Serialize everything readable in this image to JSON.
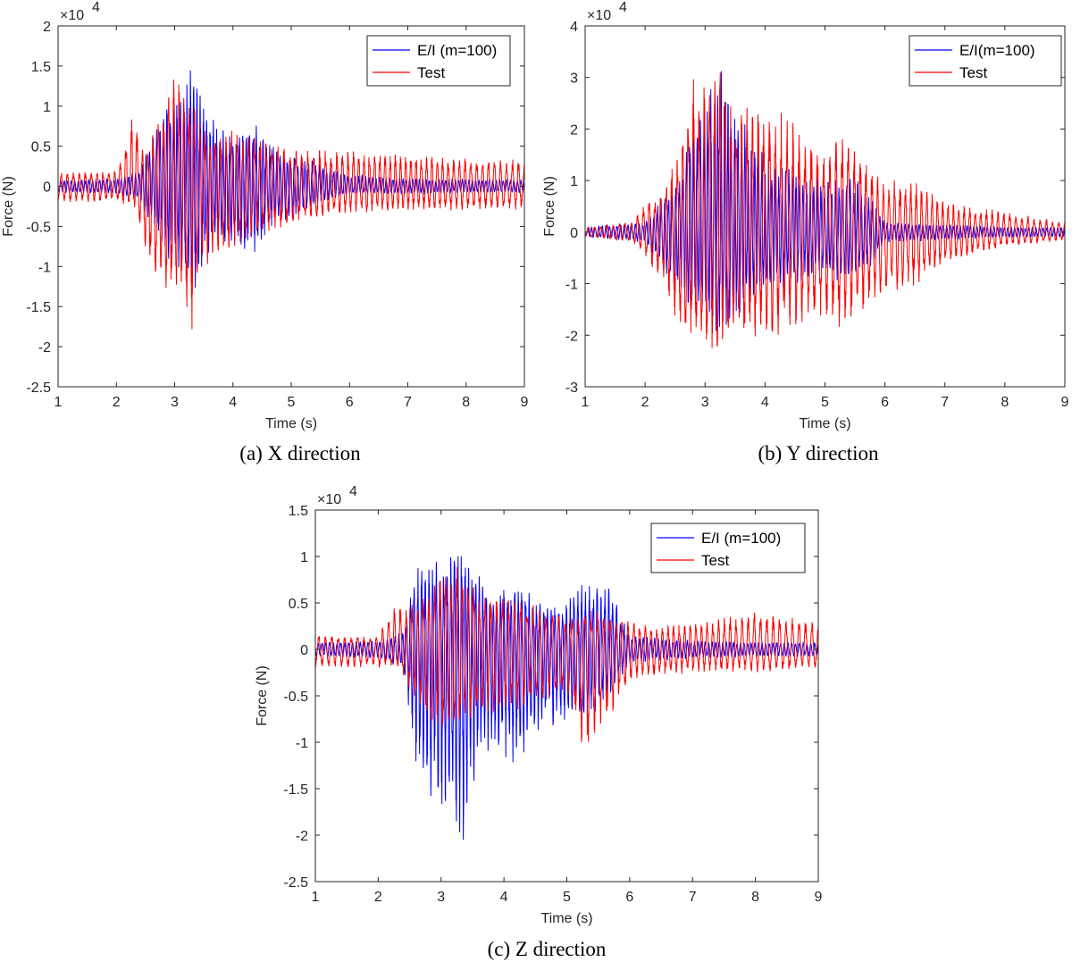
{
  "chart_data": [
    {
      "type": "line",
      "caption": "(a) X direction",
      "xlabel": "Time (s)",
      "ylabel": "Force (N)",
      "y_exponent_label": "×10",
      "y_exponent_power": "4",
      "xlim": [
        1,
        9
      ],
      "ylim": [
        -2.5,
        2
      ],
      "xticks": [
        "1",
        "2",
        "3",
        "4",
        "5",
        "6",
        "7",
        "8",
        "9"
      ],
      "yticks": [
        "2",
        "1.5",
        "1",
        "0.5",
        "0",
        "-0.5",
        "-1",
        "-1.5",
        "-2",
        "-2.5"
      ],
      "legend_position": "top-right",
      "series": [
        {
          "name": "E/I (m=100)",
          "color": "#0000ff",
          "envelope": [
            [
              1,
              0.08
            ],
            [
              2,
              0.1
            ],
            [
              2.4,
              0.2
            ],
            [
              2.6,
              0.6
            ],
            [
              2.8,
              0.9
            ],
            [
              3,
              1.2
            ],
            [
              3.2,
              1.4
            ],
            [
              3.3,
              1.6
            ],
            [
              3.5,
              1.1
            ],
            [
              3.7,
              0.8
            ],
            [
              4,
              0.6
            ],
            [
              4.4,
              0.8
            ],
            [
              4.6,
              0.6
            ],
            [
              5,
              0.4
            ],
            [
              5.5,
              0.3
            ],
            [
              6,
              0.15
            ],
            [
              7,
              0.1
            ],
            [
              8,
              0.1
            ],
            [
              9,
              0.08
            ]
          ],
          "min_envelope": [
            [
              1,
              -0.08
            ],
            [
              2,
              -0.1
            ],
            [
              2.4,
              -0.2
            ],
            [
              2.6,
              -0.5
            ],
            [
              2.8,
              -0.8
            ],
            [
              3,
              -1.0
            ],
            [
              3.2,
              -1.3
            ],
            [
              3.3,
              -1.35
            ],
            [
              3.5,
              -1.0
            ],
            [
              3.7,
              -0.7
            ],
            [
              4,
              -0.8
            ],
            [
              4.4,
              -0.9
            ],
            [
              4.6,
              -0.5
            ],
            [
              5,
              -0.4
            ],
            [
              5.5,
              -0.2
            ],
            [
              6,
              -0.1
            ],
            [
              7,
              -0.1
            ],
            [
              8,
              -0.08
            ],
            [
              9,
              -0.08
            ]
          ]
        },
        {
          "name": "Test",
          "color": "#ff0000",
          "envelope": [
            [
              1,
              0.18
            ],
            [
              2,
              0.2
            ],
            [
              2.3,
              0.95
            ],
            [
              2.5,
              0.4
            ],
            [
              2.7,
              0.9
            ],
            [
              3,
              1.4
            ],
            [
              3.2,
              1.2
            ],
            [
              3.4,
              1.0
            ],
            [
              3.6,
              0.6
            ],
            [
              4,
              0.7
            ],
            [
              4.5,
              0.6
            ],
            [
              5,
              0.5
            ],
            [
              5.5,
              0.45
            ],
            [
              6,
              0.45
            ],
            [
              7,
              0.4
            ],
            [
              8,
              0.35
            ],
            [
              9,
              0.35
            ]
          ],
          "min_envelope": [
            [
              1,
              -0.2
            ],
            [
              2,
              -0.2
            ],
            [
              2.3,
              -0.25
            ],
            [
              2.6,
              -1.2
            ],
            [
              2.9,
              -1.4
            ],
            [
              3.15,
              -1.3
            ],
            [
              3.25,
              -2.05
            ],
            [
              3.4,
              -1.2
            ],
            [
              3.6,
              -0.9
            ],
            [
              4,
              -0.8
            ],
            [
              4.5,
              -0.6
            ],
            [
              5,
              -0.5
            ],
            [
              5.5,
              -0.4
            ],
            [
              6,
              -0.35
            ],
            [
              7,
              -0.3
            ],
            [
              8,
              -0.3
            ],
            [
              9,
              -0.3
            ]
          ]
        }
      ]
    },
    {
      "type": "line",
      "caption": "(b) Y direction",
      "xlabel": "Time (s)",
      "ylabel": "Force (N)",
      "y_exponent_label": "×10",
      "y_exponent_power": "4",
      "xlim": [
        1,
        9
      ],
      "ylim": [
        -3,
        4
      ],
      "xticks": [
        "1",
        "2",
        "3",
        "4",
        "5",
        "6",
        "7",
        "8",
        "9"
      ],
      "yticks": [
        "4",
        "3",
        "2",
        "1",
        "0",
        "-1",
        "-2",
        "-3"
      ],
      "legend_position": "top-right",
      "series": [
        {
          "name": "E/I(m=100)",
          "color": "#0000ff",
          "envelope": [
            [
              1,
              0.1
            ],
            [
              2,
              0.2
            ],
            [
              2.5,
              1.0
            ],
            [
              2.8,
              2.2
            ],
            [
              3,
              2.6
            ],
            [
              3.3,
              3.4
            ],
            [
              3.6,
              2.4
            ],
            [
              4,
              1.5
            ],
            [
              4.5,
              1.2
            ],
            [
              5,
              1.0
            ],
            [
              5.5,
              1.1
            ],
            [
              5.8,
              0.6
            ],
            [
              6,
              0.2
            ],
            [
              7,
              0.15
            ],
            [
              8,
              0.1
            ],
            [
              9,
              0.1
            ]
          ],
          "min_envelope": [
            [
              1,
              -0.1
            ],
            [
              2,
              -0.2
            ],
            [
              2.5,
              -1.1
            ],
            [
              2.8,
              -1.5
            ],
            [
              3,
              -1.8
            ],
            [
              3.3,
              -2.0
            ],
            [
              3.6,
              -1.5
            ],
            [
              4,
              -1.2
            ],
            [
              4.5,
              -1.0
            ],
            [
              5,
              -0.9
            ],
            [
              5.5,
              -1.0
            ],
            [
              5.8,
              -0.6
            ],
            [
              6,
              -0.2
            ],
            [
              7,
              -0.15
            ],
            [
              8,
              -0.1
            ],
            [
              9,
              -0.1
            ]
          ]
        },
        {
          "name": "Test",
          "color": "#ff0000",
          "envelope": [
            [
              1,
              0.1
            ],
            [
              1.8,
              0.2
            ],
            [
              2,
              0.6
            ],
            [
              2.3,
              0.8
            ],
            [
              2.6,
              1.9
            ],
            [
              2.8,
              3.3
            ],
            [
              3,
              3.0
            ],
            [
              3.2,
              3.5
            ],
            [
              3.5,
              2.5
            ],
            [
              4,
              2.5
            ],
            [
              4.5,
              2.1
            ],
            [
              5,
              1.6
            ],
            [
              5.3,
              2.0
            ],
            [
              6,
              1.0
            ],
            [
              6.5,
              1.0
            ],
            [
              7,
              0.6
            ],
            [
              8,
              0.4
            ],
            [
              9,
              0.2
            ]
          ],
          "min_envelope": [
            [
              1,
              -0.1
            ],
            [
              1.8,
              -0.2
            ],
            [
              2,
              -0.5
            ],
            [
              2.3,
              -1.0
            ],
            [
              2.6,
              -2.1
            ],
            [
              2.8,
              -2.2
            ],
            [
              3.1,
              -2.45
            ],
            [
              3.5,
              -2.1
            ],
            [
              4,
              -2.1
            ],
            [
              4.5,
              -1.9
            ],
            [
              5,
              -1.7
            ],
            [
              5.3,
              -1.85
            ],
            [
              6,
              -1.2
            ],
            [
              6.5,
              -1.1
            ],
            [
              7,
              -0.6
            ],
            [
              8,
              -0.3
            ],
            [
              9,
              -0.15
            ]
          ]
        }
      ]
    },
    {
      "type": "line",
      "caption": "(c) Z direction",
      "xlabel": "Time (s)",
      "ylabel": "Force (N)",
      "y_exponent_label": "×10",
      "y_exponent_power": "4",
      "xlim": [
        1,
        9
      ],
      "ylim": [
        -2.5,
        1.5
      ],
      "xticks": [
        "1",
        "2",
        "3",
        "4",
        "5",
        "6",
        "7",
        "8",
        "9"
      ],
      "yticks": [
        "1.5",
        "1",
        "0.5",
        "0",
        "-0.5",
        "-1",
        "-1.5",
        "-2",
        "-2.5"
      ],
      "legend_position": "top-right",
      "series": [
        {
          "name": "E/I (m=100)",
          "color": "#0000ff",
          "envelope": [
            [
              1,
              0.08
            ],
            [
              2,
              0.1
            ],
            [
              2.4,
              0.2
            ],
            [
              2.6,
              0.9
            ],
            [
              2.8,
              0.95
            ],
            [
              3,
              0.9
            ],
            [
              3.3,
              1.2
            ],
            [
              3.5,
              0.9
            ],
            [
              3.8,
              0.6
            ],
            [
              4.2,
              0.8
            ],
            [
              4.5,
              0.5
            ],
            [
              5,
              0.55
            ],
            [
              5.3,
              0.7
            ],
            [
              5.7,
              0.65
            ],
            [
              6,
              0.15
            ],
            [
              7,
              0.1
            ],
            [
              8,
              0.08
            ],
            [
              9,
              0.08
            ]
          ],
          "min_envelope": [
            [
              1,
              -0.08
            ],
            [
              2,
              -0.1
            ],
            [
              2.4,
              -0.2
            ],
            [
              2.6,
              -1.25
            ],
            [
              2.8,
              -1.55
            ],
            [
              3,
              -1.75
            ],
            [
              3.2,
              -2.1
            ],
            [
              3.35,
              -2.35
            ],
            [
              3.5,
              -1.5
            ],
            [
              3.8,
              -1.0
            ],
            [
              4.2,
              -1.4
            ],
            [
              4.5,
              -0.9
            ],
            [
              5,
              -0.8
            ],
            [
              5.3,
              -0.9
            ],
            [
              5.7,
              -0.5
            ],
            [
              6,
              -0.15
            ],
            [
              7,
              -0.1
            ],
            [
              8,
              -0.08
            ],
            [
              9,
              -0.08
            ]
          ]
        },
        {
          "name": "Test",
          "color": "#ff0000",
          "envelope": [
            [
              1,
              0.15
            ],
            [
              2,
              0.15
            ],
            [
              2.3,
              0.55
            ],
            [
              2.6,
              0.5
            ],
            [
              2.9,
              0.7
            ],
            [
              3.3,
              1.0
            ],
            [
              3.6,
              0.6
            ],
            [
              4,
              0.6
            ],
            [
              4.5,
              0.5
            ],
            [
              5,
              0.35
            ],
            [
              5.3,
              0.45
            ],
            [
              6,
              0.3
            ],
            [
              6.5,
              0.25
            ],
            [
              7,
              0.3
            ],
            [
              8,
              0.4
            ],
            [
              9,
              0.3
            ]
          ],
          "min_envelope": [
            [
              1,
              -0.2
            ],
            [
              2,
              -0.2
            ],
            [
              2.3,
              -0.2
            ],
            [
              2.6,
              -0.6
            ],
            [
              2.9,
              -0.9
            ],
            [
              3.3,
              -0.9
            ],
            [
              3.6,
              -0.7
            ],
            [
              4,
              -0.7
            ],
            [
              4.5,
              -0.6
            ],
            [
              5,
              -0.5
            ],
            [
              5.3,
              -1.22
            ],
            [
              6,
              -0.35
            ],
            [
              6.5,
              -0.3
            ],
            [
              7,
              -0.25
            ],
            [
              8,
              -0.25
            ],
            [
              9,
              -0.2
            ]
          ]
        }
      ]
    }
  ]
}
